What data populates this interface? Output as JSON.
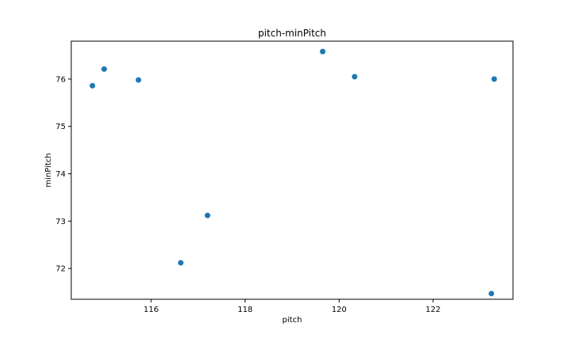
{
  "chart_data": {
    "type": "scatter",
    "title": "pitch-minPitch",
    "xlabel": "pitch",
    "ylabel": "minPitch",
    "xlim": [
      114.3,
      123.7
    ],
    "ylim": [
      71.35,
      76.8
    ],
    "xticks": [
      116,
      118,
      120,
      122
    ],
    "yticks": [
      72,
      73,
      74,
      75,
      76
    ],
    "grid": false,
    "marker_color": "#1f77b4",
    "points": [
      {
        "x": 114.75,
        "y": 75.86
      },
      {
        "x": 115.0,
        "y": 76.21
      },
      {
        "x": 115.73,
        "y": 75.98
      },
      {
        "x": 116.63,
        "y": 72.12
      },
      {
        "x": 117.2,
        "y": 73.12
      },
      {
        "x": 119.65,
        "y": 76.58
      },
      {
        "x": 120.33,
        "y": 76.05
      },
      {
        "x": 123.24,
        "y": 71.47
      },
      {
        "x": 123.3,
        "y": 76.0
      }
    ]
  }
}
